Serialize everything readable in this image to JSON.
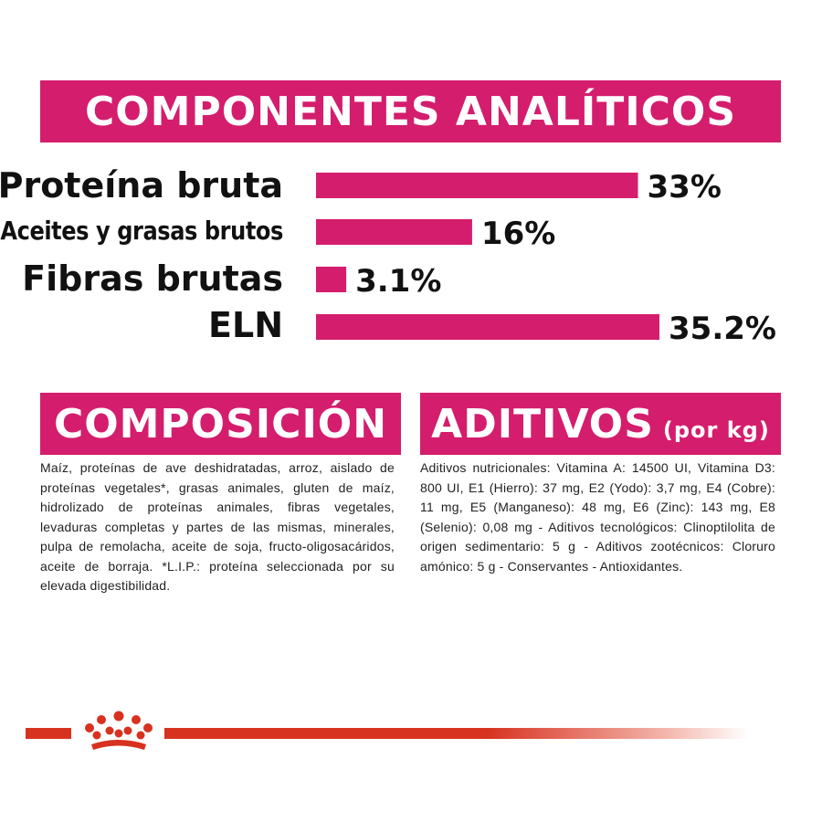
{
  "analytical": {
    "title": "COMPONENTES ANALÍTICOS"
  },
  "chart_data": {
    "type": "bar",
    "orientation": "horizontal",
    "categories": [
      "Proteína bruta",
      "Aceites y grasas brutos",
      "Fibras brutas",
      "ELN"
    ],
    "values": [
      33,
      16,
      3.1,
      35.2
    ],
    "value_labels": [
      "33%",
      "16%",
      "3.1%",
      "35.2%"
    ],
    "unit": "%",
    "xlim": [
      0,
      35.2
    ],
    "grid": false,
    "bar_color": "#d41d6d"
  },
  "composition": {
    "title": "COMPOSICIÓN",
    "text": "Maíz, proteínas de ave deshidratadas, arroz, aislado de proteínas vegetales*, grasas animales, gluten de maíz, hidrolizado de proteínas animales, fibras vegetales, levaduras completas y partes de las mismas, minerales, pulpa de remolacha, aceite de soja, fructo-oligosacáridos, aceite de borraja. *L.I.P.: proteína seleccionada por su elevada digestibilidad."
  },
  "additives": {
    "title": "ADITIVOS",
    "subtitle": "(por kg)",
    "text": "Aditivos nutricionales: Vitamina A: 14500 UI, Vitamina D3: 800 UI, E1 (Hierro): 37 mg, E2 (Yodo): 3,7 mg, E4 (Cobre): 11 mg, E5 (Manganeso): 48 mg, E6 (Zinc): 143 mg, E8 (Selenio): 0,08 mg - Aditivos tecnológicos: Clinoptilolita de origen sedimentario: 5 g - Aditivos zootécnicos: Cloruro amónico: 5 g - Conservantes - Antioxidantes."
  },
  "colors": {
    "accent": "#d41d6d",
    "brand_red": "#d7321f"
  },
  "footer": {
    "logo_icon": "royal-canin-crown-icon"
  }
}
